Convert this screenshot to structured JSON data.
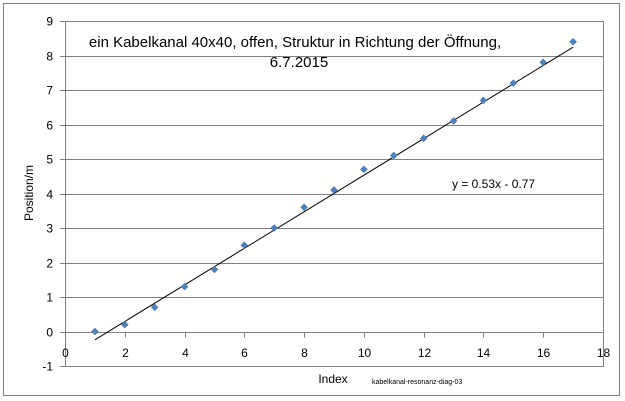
{
  "chart_data": {
    "type": "scatter",
    "title_lines": [
      "ein Kabelkanal 40x40, offen, Struktur in Richtung der Öffnung,",
      "6.7.2015"
    ],
    "xlabel": "Index",
    "ylabel": "Position/m",
    "xlim": [
      0,
      18
    ],
    "ylim": [
      -1,
      9
    ],
    "xticks": [
      0,
      2,
      4,
      6,
      8,
      10,
      12,
      14,
      16,
      18
    ],
    "yticks": [
      -1,
      0,
      1,
      2,
      3,
      4,
      5,
      6,
      7,
      8,
      9
    ],
    "grid": "horizontal",
    "marker_color": "#4f81bd",
    "trendline_color": "#000000",
    "points": [
      {
        "x": 1,
        "y": 0
      },
      {
        "x": 2,
        "y": 0.2
      },
      {
        "x": 3,
        "y": 0.7
      },
      {
        "x": 4,
        "y": 1.3
      },
      {
        "x": 5,
        "y": 1.8
      },
      {
        "x": 6,
        "y": 2.5
      },
      {
        "x": 7,
        "y": 3.0
      },
      {
        "x": 8,
        "y": 3.6
      },
      {
        "x": 9,
        "y": 4.1
      },
      {
        "x": 10,
        "y": 4.7
      },
      {
        "x": 11,
        "y": 5.1
      },
      {
        "x": 12,
        "y": 5.6
      },
      {
        "x": 13,
        "y": 6.1
      },
      {
        "x": 14,
        "y": 6.7
      },
      {
        "x": 15,
        "y": 7.2
      },
      {
        "x": 16,
        "y": 7.8
      },
      {
        "x": 17,
        "y": 8.4
      }
    ],
    "trendline": {
      "slope": 0.53,
      "intercept": -0.77,
      "x_range": [
        1,
        17
      ],
      "label": "y = 0.53x - 0.77"
    },
    "caption": "kabelkanal-resonanz-diag-03"
  }
}
